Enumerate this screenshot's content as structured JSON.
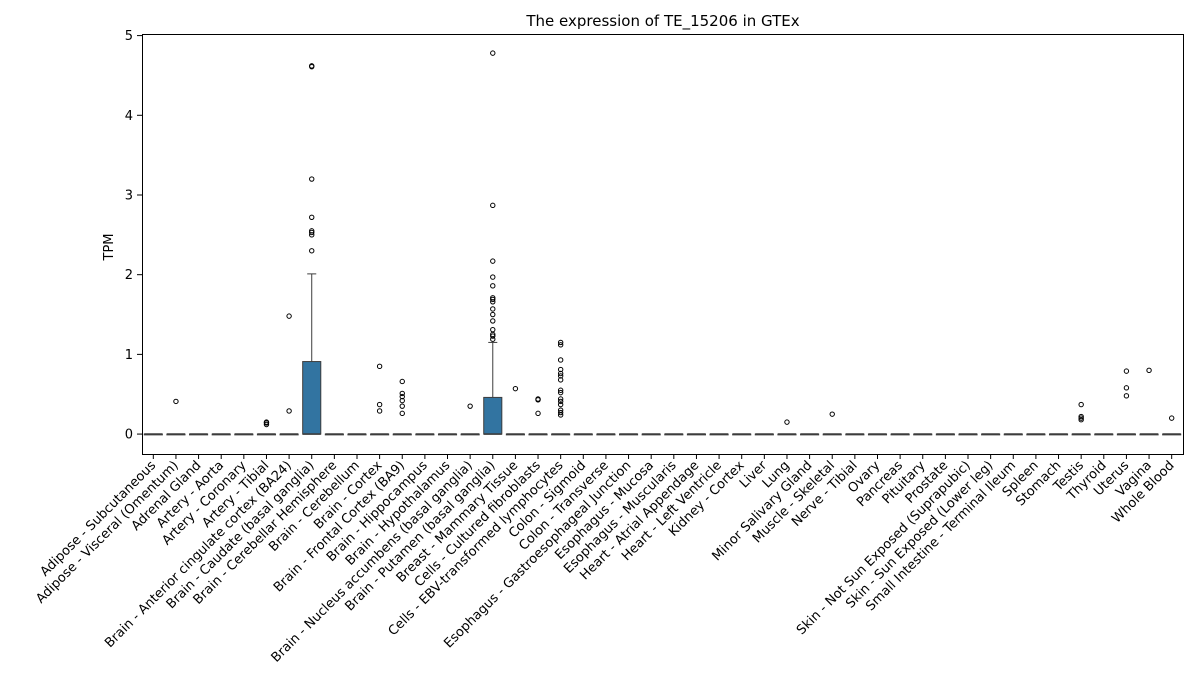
{
  "chart_data": {
    "type": "box",
    "title": "The expression of TE_15206 in GTEx",
    "xlabel": "",
    "ylabel": "TPM",
    "ylim": [
      -0.25,
      5.02
    ],
    "yticks": [
      0,
      1,
      2,
      3,
      4,
      5
    ],
    "grid": false,
    "box_color": "#3274a1",
    "categories": [
      "Adipose - Subcutaneous",
      "Adipose - Visceral (Omentum)",
      "Adrenal Gland",
      "Artery - Aorta",
      "Artery - Coronary",
      "Artery - Tibial",
      "Brain - Anterior cingulate cortex (BA24)",
      "Brain - Caudate (basal ganglia)",
      "Brain - Cerebellar Hemisphere",
      "Brain - Cerebellum",
      "Brain - Cortex",
      "Brain - Frontal Cortex (BA9)",
      "Brain - Hippocampus",
      "Brain - Hypothalamus",
      "Brain - Nucleus accumbens (basal ganglia)",
      "Brain - Putamen (basal ganglia)",
      "Breast - Mammary Tissue",
      "Cells - Cultured fibroblasts",
      "Cells - EBV-transformed lymphocytes",
      "Colon - Sigmoid",
      "Colon - Transverse",
      "Esophagus - Gastroesophageal Junction",
      "Esophagus - Mucosa",
      "Esophagus - Muscularis",
      "Heart - Atrial Appendage",
      "Heart - Left Ventricle",
      "Kidney - Cortex",
      "Liver",
      "Lung",
      "Minor Salivary Gland",
      "Muscle - Skeletal",
      "Nerve - Tibial",
      "Ovary",
      "Pancreas",
      "Pituitary",
      "Prostate",
      "Skin - Not Sun Exposed (Suprapubic)",
      "Skin - Sun Exposed (Lower leg)",
      "Small Intestine - Terminal Ileum",
      "Spleen",
      "Stomach",
      "Testis",
      "Thyroid",
      "Uterus",
      "Vagina",
      "Whole Blood"
    ],
    "boxes": [
      {
        "q1": 0,
        "median": 0,
        "q3": 0,
        "whisker_low": 0,
        "whisker_high": 0,
        "outliers": []
      },
      {
        "q1": 0,
        "median": 0,
        "q3": 0,
        "whisker_low": 0,
        "whisker_high": 0,
        "outliers": [
          0.41
        ]
      },
      {
        "q1": 0,
        "median": 0,
        "q3": 0,
        "whisker_low": 0,
        "whisker_high": 0,
        "outliers": []
      },
      {
        "q1": 0,
        "median": 0,
        "q3": 0,
        "whisker_low": 0,
        "whisker_high": 0,
        "outliers": []
      },
      {
        "q1": 0,
        "median": 0,
        "q3": 0,
        "whisker_low": 0,
        "whisker_high": 0,
        "outliers": []
      },
      {
        "q1": 0,
        "median": 0,
        "q3": 0,
        "whisker_low": 0,
        "whisker_high": 0,
        "outliers": [
          0.12,
          0.14,
          0.15
        ]
      },
      {
        "q1": 0,
        "median": 0,
        "q3": 0,
        "whisker_low": 0,
        "whisker_high": 0,
        "outliers": [
          0.29,
          1.48
        ]
      },
      {
        "q1": 0,
        "median": 0,
        "q3": 0.91,
        "whisker_low": 0,
        "whisker_high": 2.01,
        "outliers": [
          2.3,
          2.5,
          2.53,
          2.55,
          2.72,
          3.2,
          4.61,
          4.62
        ]
      },
      {
        "q1": 0,
        "median": 0,
        "q3": 0,
        "whisker_low": 0,
        "whisker_high": 0,
        "outliers": []
      },
      {
        "q1": 0,
        "median": 0,
        "q3": 0,
        "whisker_low": 0,
        "whisker_high": 0,
        "outliers": []
      },
      {
        "q1": 0,
        "median": 0,
        "q3": 0,
        "whisker_low": 0,
        "whisker_high": 0,
        "outliers": [
          0.29,
          0.37,
          0.85
        ]
      },
      {
        "q1": 0,
        "median": 0,
        "q3": 0,
        "whisker_low": 0,
        "whisker_high": 0,
        "outliers": [
          0.26,
          0.35,
          0.42,
          0.47,
          0.51,
          0.66
        ]
      },
      {
        "q1": 0,
        "median": 0,
        "q3": 0,
        "whisker_low": 0,
        "whisker_high": 0,
        "outliers": []
      },
      {
        "q1": 0,
        "median": 0,
        "q3": 0,
        "whisker_low": 0,
        "whisker_high": 0,
        "outliers": []
      },
      {
        "q1": 0,
        "median": 0,
        "q3": 0,
        "whisker_low": 0,
        "whisker_high": 0,
        "outliers": [
          0.35
        ]
      },
      {
        "q1": 0,
        "median": 0,
        "q3": 0.46,
        "whisker_low": 0,
        "whisker_high": 1.15,
        "outliers": [
          1.19,
          1.23,
          1.25,
          1.31,
          1.42,
          1.5,
          1.57,
          1.66,
          1.69,
          1.71,
          1.86,
          1.97,
          2.17,
          2.87,
          4.78
        ]
      },
      {
        "q1": 0,
        "median": 0,
        "q3": 0,
        "whisker_low": 0,
        "whisker_high": 0,
        "outliers": [
          0.57
        ]
      },
      {
        "q1": 0,
        "median": 0,
        "q3": 0,
        "whisker_low": 0,
        "whisker_high": 0,
        "outliers": [
          0.26,
          0.43,
          0.44
        ]
      },
      {
        "q1": 0,
        "median": 0,
        "q3": 0,
        "whisker_low": 0,
        "whisker_high": 0,
        "outliers": [
          0.24,
          0.27,
          0.3,
          0.37,
          0.41,
          0.44,
          0.52,
          0.55,
          0.68,
          0.73,
          0.76,
          0.81,
          0.93,
          1.12,
          1.15
        ]
      },
      {
        "q1": 0,
        "median": 0,
        "q3": 0,
        "whisker_low": 0,
        "whisker_high": 0,
        "outliers": []
      },
      {
        "q1": 0,
        "median": 0,
        "q3": 0,
        "whisker_low": 0,
        "whisker_high": 0,
        "outliers": []
      },
      {
        "q1": 0,
        "median": 0,
        "q3": 0,
        "whisker_low": 0,
        "whisker_high": 0,
        "outliers": []
      },
      {
        "q1": 0,
        "median": 0,
        "q3": 0,
        "whisker_low": 0,
        "whisker_high": 0,
        "outliers": []
      },
      {
        "q1": 0,
        "median": 0,
        "q3": 0,
        "whisker_low": 0,
        "whisker_high": 0,
        "outliers": []
      },
      {
        "q1": 0,
        "median": 0,
        "q3": 0,
        "whisker_low": 0,
        "whisker_high": 0,
        "outliers": []
      },
      {
        "q1": 0,
        "median": 0,
        "q3": 0,
        "whisker_low": 0,
        "whisker_high": 0,
        "outliers": []
      },
      {
        "q1": 0,
        "median": 0,
        "q3": 0,
        "whisker_low": 0,
        "whisker_high": 0,
        "outliers": []
      },
      {
        "q1": 0,
        "median": 0,
        "q3": 0,
        "whisker_low": 0,
        "whisker_high": 0,
        "outliers": []
      },
      {
        "q1": 0,
        "median": 0,
        "q3": 0,
        "whisker_low": 0,
        "whisker_high": 0,
        "outliers": [
          0.15
        ]
      },
      {
        "q1": 0,
        "median": 0,
        "q3": 0,
        "whisker_low": 0,
        "whisker_high": 0,
        "outliers": []
      },
      {
        "q1": 0,
        "median": 0,
        "q3": 0,
        "whisker_low": 0,
        "whisker_high": 0,
        "outliers": [
          0.25
        ]
      },
      {
        "q1": 0,
        "median": 0,
        "q3": 0,
        "whisker_low": 0,
        "whisker_high": 0,
        "outliers": []
      },
      {
        "q1": 0,
        "median": 0,
        "q3": 0,
        "whisker_low": 0,
        "whisker_high": 0,
        "outliers": []
      },
      {
        "q1": 0,
        "median": 0,
        "q3": 0,
        "whisker_low": 0,
        "whisker_high": 0,
        "outliers": []
      },
      {
        "q1": 0,
        "median": 0,
        "q3": 0,
        "whisker_low": 0,
        "whisker_high": 0,
        "outliers": []
      },
      {
        "q1": 0,
        "median": 0,
        "q3": 0,
        "whisker_low": 0,
        "whisker_high": 0,
        "outliers": []
      },
      {
        "q1": 0,
        "median": 0,
        "q3": 0,
        "whisker_low": 0,
        "whisker_high": 0,
        "outliers": []
      },
      {
        "q1": 0,
        "median": 0,
        "q3": 0,
        "whisker_low": 0,
        "whisker_high": 0,
        "outliers": []
      },
      {
        "q1": 0,
        "median": 0,
        "q3": 0,
        "whisker_low": 0,
        "whisker_high": 0,
        "outliers": []
      },
      {
        "q1": 0,
        "median": 0,
        "q3": 0,
        "whisker_low": 0,
        "whisker_high": 0,
        "outliers": []
      },
      {
        "q1": 0,
        "median": 0,
        "q3": 0,
        "whisker_low": 0,
        "whisker_high": 0,
        "outliers": []
      },
      {
        "q1": 0,
        "median": 0,
        "q3": 0,
        "whisker_low": 0,
        "whisker_high": 0,
        "outliers": [
          0.18,
          0.2,
          0.22,
          0.37
        ]
      },
      {
        "q1": 0,
        "median": 0,
        "q3": 0,
        "whisker_low": 0,
        "whisker_high": 0,
        "outliers": []
      },
      {
        "q1": 0,
        "median": 0,
        "q3": 0,
        "whisker_low": 0,
        "whisker_high": 0,
        "outliers": [
          0.48,
          0.58,
          0.79
        ]
      },
      {
        "q1": 0,
        "median": 0,
        "q3": 0,
        "whisker_low": 0,
        "whisker_high": 0,
        "outliers": [
          0.8
        ]
      },
      {
        "q1": 0,
        "median": 0,
        "q3": 0,
        "whisker_low": 0,
        "whisker_high": 0,
        "outliers": [
          0.2
        ]
      }
    ]
  }
}
